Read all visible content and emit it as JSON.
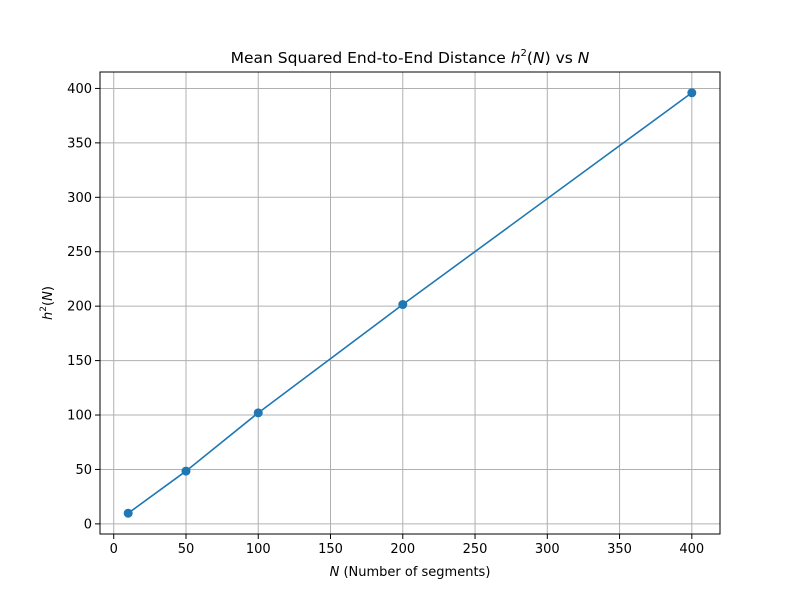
{
  "chart_data": {
    "type": "line",
    "title_prefix": "Mean Squared End-to-End Distance ",
    "title_h": "h",
    "title_sup": "2",
    "title_mid": "(",
    "title_N1": "N",
    "title_close": ")",
    "title_vs": " vs ",
    "title_N2": "N",
    "xlabel_var": "N",
    "xlabel_rest": " (Number of segments)",
    "ylabel_h": "h",
    "ylabel_sup": "2",
    "ylabel_open": "(",
    "ylabel_N": "N",
    "ylabel_close": ")",
    "x": [
      10,
      50,
      100,
      200,
      400
    ],
    "y": [
      9.8,
      48.5,
      102.0,
      201.5,
      396.0
    ],
    "xlim": [
      -9.5,
      419.5
    ],
    "ylim": [
      -9.3,
      415.1
    ],
    "xticks": [
      0,
      50,
      100,
      150,
      200,
      250,
      300,
      350,
      400
    ],
    "yticks": [
      0,
      50,
      100,
      150,
      200,
      250,
      300,
      350,
      400
    ],
    "grid": true,
    "colors": {
      "line": "#1f77b4",
      "grid": "#b0b0b0",
      "axes": "#000000"
    }
  }
}
